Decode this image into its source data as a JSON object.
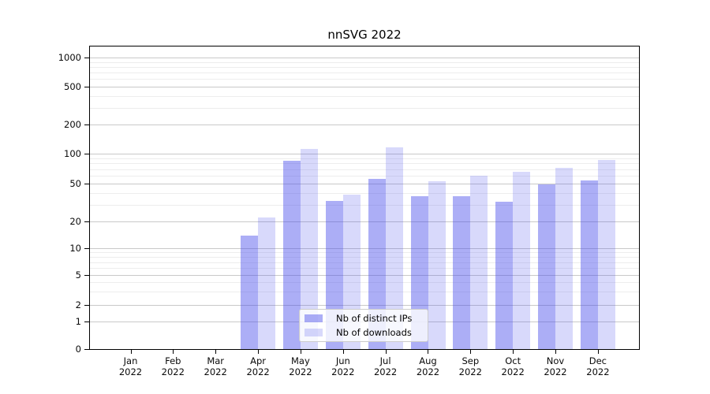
{
  "chart_data": {
    "type": "bar",
    "title": "nnSVG 2022",
    "categories": [
      "Jan 2022",
      "Feb 2022",
      "Mar 2022",
      "Apr 2022",
      "May 2022",
      "Jun 2022",
      "Jul 2022",
      "Aug 2022",
      "Sep 2022",
      "Oct 2022",
      "Nov 2022",
      "Dec 2022"
    ],
    "series": [
      {
        "name": "Nb of distinct IPs",
        "color": "rgba(70,75,235,0.45)",
        "values": [
          0,
          0,
          0,
          14,
          85,
          33,
          56,
          37,
          37,
          32,
          49,
          54
        ]
      },
      {
        "name": "Nb of downloads",
        "color": "rgba(70,75,235,0.21)",
        "values": [
          0,
          0,
          0,
          22,
          111,
          38,
          116,
          53,
          60,
          66,
          72,
          87
        ]
      }
    ],
    "xlabel": "",
    "ylabel": "",
    "y_scale": "log-like",
    "y_ticks": [
      0,
      1,
      2,
      5,
      10,
      20,
      50,
      100,
      200,
      500,
      1000
    ],
    "y_minor_gridlines": [
      3,
      4,
      6,
      7,
      8,
      9,
      30,
      40,
      60,
      70,
      80,
      90,
      300,
      400,
      600,
      700,
      800,
      900
    ],
    "ylim": [
      0,
      1300
    ],
    "grid": "horizontal major and minor gridlines",
    "legend_position": "lower center, semi-transparent box over bars",
    "colors": {
      "background": "#ffffff",
      "axis": "#000000",
      "grid_major": "#c9c9c9",
      "grid_minor": "#ededed",
      "legend_border": "#cccccc",
      "legend_background": "rgba(255,255,255,0.8)"
    }
  }
}
